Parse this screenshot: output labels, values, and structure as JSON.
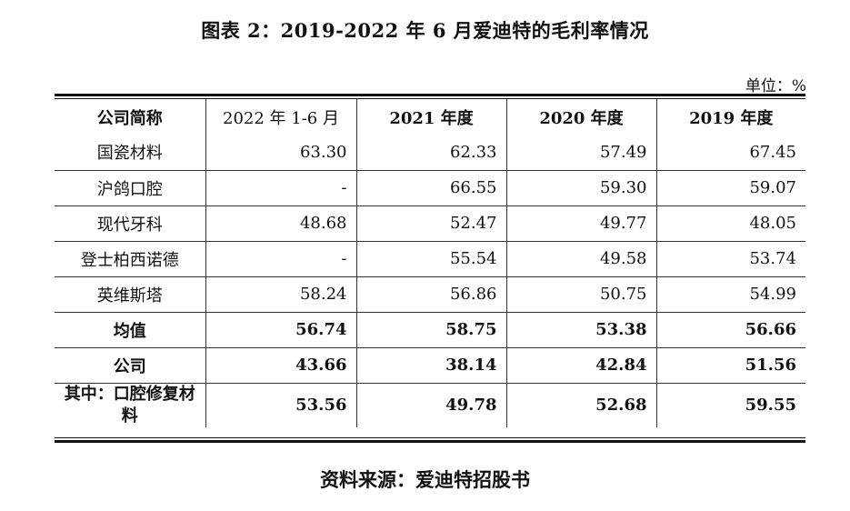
{
  "title": "图表 2：2019-2022 年 6 月爱迪特的毛利率情况",
  "unit_label": "单位：%",
  "table": {
    "headers": [
      "公司简称",
      "2022 年 1-6 月",
      "2021 年度",
      "2020 年度",
      "2019 年度"
    ],
    "rows": [
      {
        "name": "国瓷材料",
        "values": [
          "63.30",
          "62.33",
          "57.49",
          "67.45"
        ]
      },
      {
        "name": "沪鸽口腔",
        "values": [
          "-",
          "66.55",
          "59.30",
          "59.07"
        ]
      },
      {
        "name": "现代牙科",
        "values": [
          "48.68",
          "52.47",
          "49.77",
          "48.05"
        ]
      },
      {
        "name": "登士柏西诺德",
        "values": [
          "-",
          "55.54",
          "49.58",
          "53.74"
        ]
      },
      {
        "name": "英维斯塔",
        "values": [
          "58.24",
          "56.86",
          "50.75",
          "54.99"
        ]
      },
      {
        "name": "均值",
        "values": [
          "56.74",
          "58.75",
          "53.38",
          "56.66"
        ]
      },
      {
        "name": "公司",
        "values": [
          "43.66",
          "38.14",
          "42.84",
          "51.56"
        ]
      },
      {
        "name": "其中：口腔修复材料",
        "values": [
          "53.56",
          "49.78",
          "52.68",
          "59.55"
        ]
      }
    ]
  },
  "source": "资料来源：爱迪特招股书"
}
